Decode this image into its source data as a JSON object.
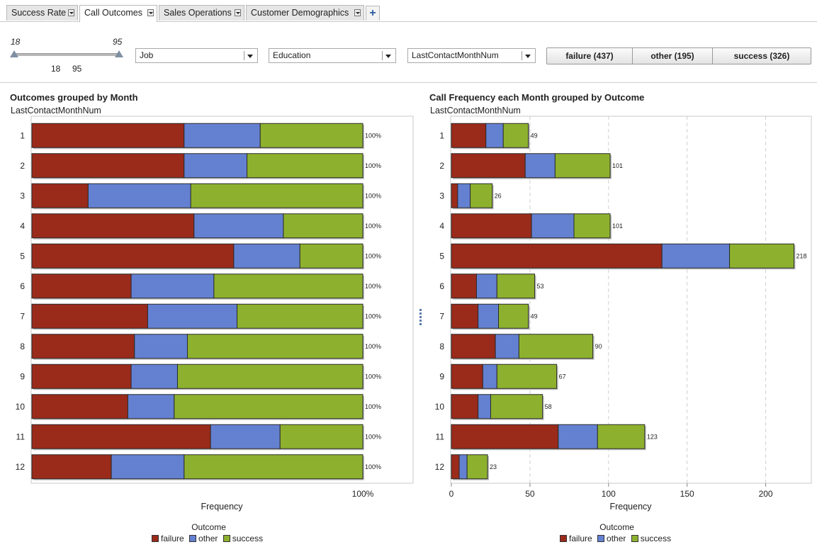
{
  "tabs": [
    {
      "label": "Success Rate",
      "active": false
    },
    {
      "label": "Call Outcomes",
      "active": true
    },
    {
      "label": "Sales Operations",
      "active": false
    },
    {
      "label": "Customer Demographics",
      "active": false
    }
  ],
  "add_tab_label": "+",
  "age_slider": {
    "min": "18",
    "max": "95",
    "low": "18",
    "high": "95"
  },
  "filters": {
    "job": "Job",
    "education": "Education",
    "month": "LastContactMonthNum"
  },
  "outcome_buttons": [
    "failure (437)",
    "other (195)",
    "success (326)"
  ],
  "colors": {
    "failure": "#9a2a1a",
    "other": "#6481d1",
    "success": "#8db12e"
  },
  "chart_data": [
    {
      "type": "bar",
      "stacked": "percent",
      "orientation": "horizontal",
      "title": "Outcomes grouped by Month",
      "ylabel": "LastContactMonthNum",
      "xlabel": "Frequency",
      "x_tick_label": "100%",
      "categories": [
        "1",
        "2",
        "3",
        "4",
        "5",
        "6",
        "7",
        "8",
        "9",
        "10",
        "11",
        "12"
      ],
      "series": [
        {
          "name": "failure",
          "values": [
            46,
            46,
            17,
            49,
            61,
            30,
            35,
            31,
            30,
            29,
            54,
            24
          ]
        },
        {
          "name": "other",
          "values": [
            23,
            19,
            31,
            27,
            20,
            25,
            27,
            16,
            14,
            14,
            21,
            22
          ]
        },
        {
          "name": "success",
          "values": [
            31,
            35,
            52,
            24,
            19,
            45,
            38,
            53,
            56,
            57,
            25,
            54
          ]
        }
      ],
      "data_labels": [
        "100%",
        "100%",
        "100%",
        "100%",
        "100%",
        "100%",
        "100%",
        "100%",
        "100%",
        "100%",
        "100%",
        "100%"
      ],
      "legend": {
        "title": "Outcome",
        "entries": [
          "failure",
          "other",
          "success"
        ],
        "position": "bottom"
      }
    },
    {
      "type": "bar",
      "stacked": "absolute",
      "orientation": "horizontal",
      "title": "Call Frequency each Month grouped by Outcome",
      "ylabel": "LastContactMonthNum",
      "xlabel": "Frequency",
      "xlim": [
        0,
        220
      ],
      "x_ticks": [
        0,
        50,
        100,
        150,
        200
      ],
      "grid": true,
      "categories": [
        "1",
        "2",
        "3",
        "4",
        "5",
        "6",
        "7",
        "8",
        "9",
        "10",
        "11",
        "12"
      ],
      "series": [
        {
          "name": "failure",
          "values": [
            22,
            47,
            4,
            51,
            134,
            16,
            17,
            28,
            20,
            17,
            68,
            5
          ]
        },
        {
          "name": "other",
          "values": [
            11,
            19,
            8,
            27,
            43,
            13,
            13,
            15,
            9,
            8,
            25,
            5
          ]
        },
        {
          "name": "success",
          "values": [
            16,
            35,
            14,
            23,
            41,
            24,
            19,
            47,
            38,
            33,
            30,
            13
          ]
        }
      ],
      "totals": [
        49,
        101,
        26,
        101,
        218,
        53,
        49,
        90,
        67,
        58,
        123,
        23
      ],
      "legend": {
        "title": "Outcome",
        "entries": [
          "failure",
          "other",
          "success"
        ],
        "position": "bottom"
      }
    }
  ]
}
